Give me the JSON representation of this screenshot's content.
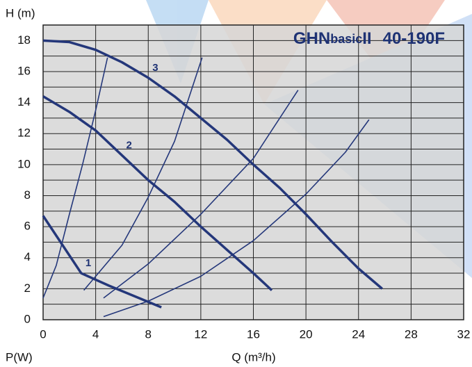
{
  "chart_data": {
    "type": "line",
    "title": [
      "GHN",
      "basic",
      "II",
      "40-190F"
    ],
    "y_label": "H (m)",
    "x_label": "Q (m³/h)",
    "y2_label": "P(W)",
    "xlim": [
      0,
      32
    ],
    "ylim": [
      0,
      19
    ],
    "xticks": [
      0,
      4,
      8,
      12,
      16,
      20,
      24,
      28,
      32
    ],
    "yticks": [
      0,
      2,
      4,
      6,
      8,
      10,
      12,
      14,
      16,
      18
    ],
    "yminorticks": [
      1,
      3,
      5,
      7,
      9,
      11,
      13,
      15,
      17,
      19
    ],
    "grid": true,
    "plot_color": "#d6d6d6",
    "series": [
      {
        "name": "1",
        "color": "#24377a",
        "x": [
          0,
          2.9,
          5,
          7,
          9
        ],
        "values": [
          6.7,
          3.0,
          2.2,
          1.5,
          0.8
        ]
      },
      {
        "name": "2",
        "color": "#24377a",
        "x": [
          0,
          2,
          4,
          6,
          8,
          10,
          12,
          14,
          16,
          17.4
        ],
        "values": [
          14.4,
          13.4,
          12.2,
          10.6,
          9.0,
          7.6,
          6.0,
          4.5,
          3.0,
          1.9
        ]
      },
      {
        "name": "3",
        "color": "#24377a",
        "x": [
          0,
          2,
          4,
          6,
          8,
          10,
          12,
          14,
          16,
          18,
          20,
          22,
          24,
          25.8
        ],
        "values": [
          18,
          17.9,
          17.4,
          16.6,
          15.6,
          14.4,
          13.0,
          11.6,
          10.0,
          8.5,
          6.8,
          5.0,
          3.3,
          2.0
        ]
      },
      {
        "color": "#24377a",
        "x": [
          0,
          1,
          2,
          3,
          4,
          4.9
        ],
        "values": [
          1.4,
          3.5,
          6.8,
          10.0,
          13.5,
          16.9
        ]
      },
      {
        "color": "#24377a",
        "x": [
          3.1,
          6,
          8,
          10,
          12.1
        ],
        "values": [
          1.9,
          4.8,
          7.9,
          11.5,
          16.9
        ]
      },
      {
        "color": "#24377a",
        "x": [
          4.6,
          8,
          12,
          16,
          19.4
        ],
        "values": [
          1.4,
          3.6,
          6.8,
          10.4,
          14.8
        ]
      },
      {
        "color": "#24377a",
        "x": [
          4.6,
          8,
          12,
          16,
          20,
          23,
          24.8
        ],
        "values": [
          0.2,
          1.2,
          2.8,
          5.1,
          8.1,
          10.8,
          12.9
        ]
      }
    ]
  }
}
